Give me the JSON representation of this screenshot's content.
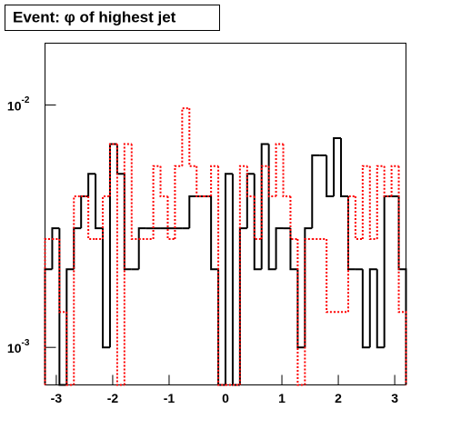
{
  "chart_data": {
    "type": "histogram",
    "title": "Event: φ of highest jet",
    "bins": [
      -3.2,
      -3.072,
      -2.944,
      -2.816,
      -2.688,
      -2.56,
      -2.432,
      -2.304,
      -2.176,
      -2.048,
      -1.92,
      -1.792,
      -1.664,
      -1.536,
      -1.408,
      -1.28,
      -1.152,
      -1.024,
      -0.896,
      -0.768,
      -0.64,
      -0.512,
      -0.384,
      -0.256,
      -0.128,
      0,
      0.128,
      0.256,
      0.384,
      0.512,
      0.64,
      0.768,
      0.896,
      1.024,
      1.152,
      1.28,
      1.408,
      1.536,
      1.664,
      1.792,
      1.92,
      2.048,
      2.176,
      2.304,
      2.432,
      2.56,
      2.688,
      2.816,
      2.944,
      3.072,
      3.2
    ],
    "series": [
      {
        "color": "#000000",
        "dash": "solid",
        "values": [
          0.0021,
          0.0031,
          0,
          0.0021,
          0.0031,
          0.0042,
          0.0052,
          0.0031,
          0.001,
          0.0069,
          0.0052,
          0.0021,
          0.0021,
          0.0031,
          0.0031,
          0.0031,
          0.0031,
          0.0031,
          0.0031,
          0.0031,
          0.0042,
          0.0042,
          0.0042,
          0.0021,
          0,
          0.0052,
          0,
          0.0031,
          0.0052,
          0.0021,
          0.0069,
          0.0021,
          0.0031,
          0.0031,
          0.0021,
          0.001,
          0.0031,
          0.0062,
          0.0062,
          0.0042,
          0.0073,
          0.0042,
          0.0021,
          0.0021,
          0.001,
          0.0021,
          0.001,
          0.0042,
          0.0042,
          0.0021
        ]
      },
      {
        "color": "#ff0000",
        "dash": "dotted",
        "values": [
          0.0028,
          0.0028,
          0.0014,
          0,
          0.0042,
          0.0042,
          0.0028,
          0.0028,
          0.0042,
          0.0069,
          0,
          0.0069,
          0.0028,
          0.0028,
          0.0028,
          0.0056,
          0.0042,
          0.0028,
          0.0056,
          0.0097,
          0.0056,
          0.0042,
          0.0042,
          0.0056,
          0,
          0,
          0,
          0.0056,
          0.0042,
          0.0028,
          0.0056,
          0.0042,
          0.0069,
          0.0042,
          0.0028,
          0,
          0.0028,
          0.0028,
          0.0028,
          0.0014,
          0.0014,
          0.0014,
          0.0042,
          0.0028,
          0.0056,
          0.0028,
          0.0056,
          0.0042,
          0.0056,
          0.0014
        ]
      }
    ],
    "xlim": [
      -3.2,
      3.2
    ],
    "xticks": [
      -3,
      -2,
      -1,
      0,
      1,
      2,
      3
    ],
    "ylim": [
      0.0007,
      0.018
    ],
    "yticks": [
      {
        "value": 0.001,
        "label": "10",
        "exponent": "-3"
      },
      {
        "value": 0.01,
        "label": "10",
        "exponent": "-2"
      }
    ],
    "log_y": true
  }
}
